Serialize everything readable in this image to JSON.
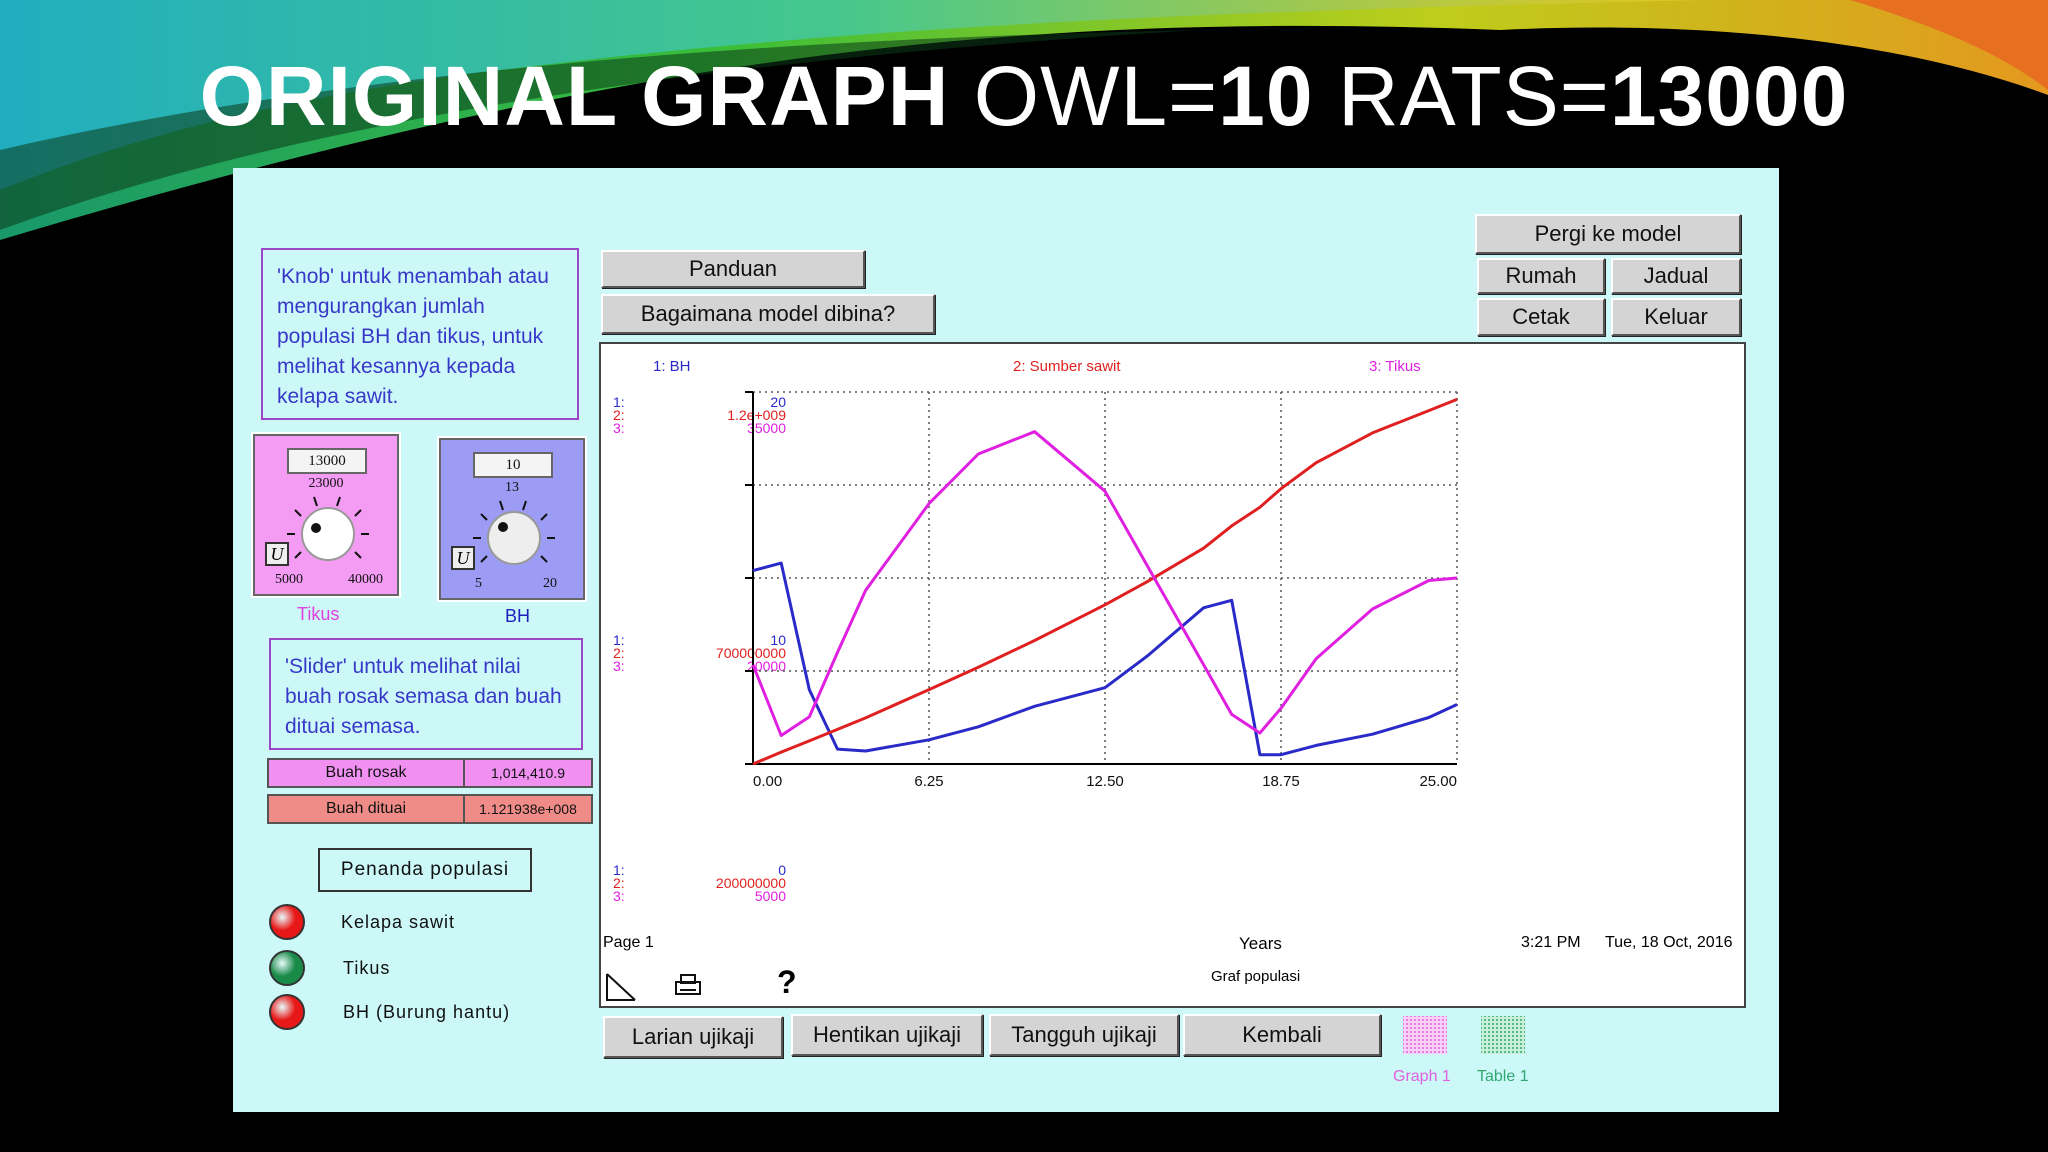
{
  "slide": {
    "title_bold1": "ORIGINAL GRAPH",
    "title_part2": "OWL=",
    "title_bold2": "10",
    "title_part3": "RATS=",
    "title_bold3": "13000"
  },
  "notes": {
    "knob_text": "'Knob' untuk menambah atau mengurangkan jumlah populasi BH dan tikus, untuk melihat kesannya kepada kelapa sawit.",
    "slider_text": "'Slider' untuk melihat nilai buah rosak semasa dan buah dituai semasa."
  },
  "buttons": {
    "panduan": "Panduan",
    "bagaimana": "Bagaimana model dibina?",
    "pergi": "Pergi ke model",
    "rumah": "Rumah",
    "jadual": "Jadual",
    "cetak": "Cetak",
    "keluar": "Keluar",
    "larian": "Larian ujikaji",
    "hentikan": "Hentikan ujikaji",
    "tangguh": "Tangguh ujikaji",
    "kembali": "Kembali"
  },
  "knobs": {
    "tikus": {
      "value": "13000",
      "sub": "23000",
      "min": "5000",
      "max": "40000",
      "label": "Tikus",
      "bg": "#f49cf4",
      "label_color": "#e040e0"
    },
    "bh": {
      "value": "10",
      "sub": "13",
      "min": "5",
      "max": "20",
      "label": "BH",
      "bg": "#9c9cf4",
      "label_color": "#2020c0"
    },
    "lock_glyph": "U"
  },
  "sliders": [
    {
      "label": "Buah rosak",
      "value": "1,014,410.9",
      "bg": "#f090f0"
    },
    {
      "label": "Buah dituai",
      "value": "1.121938e+008",
      "bg": "#f08c88"
    }
  ],
  "legend": {
    "title": "Penanda populasi",
    "items": [
      {
        "label": "Kelapa sawit",
        "color": "#e81818"
      },
      {
        "label": "Tikus",
        "color": "#1a8a48"
      },
      {
        "label": "BH (Burung hantu)",
        "color": "#e81818"
      }
    ]
  },
  "graph": {
    "legend": [
      {
        "label": "1: BH",
        "color": "#2a2ac8"
      },
      {
        "label": "2: Sumber sawit",
        "color": "#e02020"
      },
      {
        "label": "3: Tikus",
        "color": "#e020e0"
      }
    ],
    "y_top": {
      "s1": "20",
      "s2": "1.2e+009",
      "s3": "35000"
    },
    "y_mid": {
      "s1": "10",
      "s2": "700000000",
      "s3": "20000"
    },
    "y_bot": {
      "s1": "0",
      "s2": "200000000",
      "s3": "5000"
    },
    "axis_prefix": {
      "s1": "1:",
      "s2": "2:",
      "s3": "3:"
    },
    "x_ticks": [
      "0.00",
      "6.25",
      "12.50",
      "18.75",
      "25.00"
    ],
    "x_label": "Years",
    "page": "Page 1",
    "time": "3:21 PM",
    "date": "Tue, 18 Oct, 2016",
    "caption": "Graf populasi",
    "help": "?"
  },
  "chart_data": {
    "type": "line",
    "x": [
      0,
      1,
      2,
      3,
      4,
      6.25,
      8,
      10,
      12.5,
      14,
      16,
      17,
      18,
      18.75,
      20,
      22,
      24,
      25
    ],
    "xlim": [
      0,
      25
    ],
    "series": [
      {
        "name": "1: BH",
        "color": "#2a2ac8",
        "ylim": [
          0,
          20
        ],
        "values": [
          10.4,
          10.8,
          4,
          0.8,
          0.7,
          1.3,
          2.0,
          3.1,
          4.1,
          5.8,
          8.4,
          8.8,
          0.5,
          0.5,
          1.0,
          1.6,
          2.5,
          3.2
        ]
      },
      {
        "name": "2: Sumber sawit",
        "color": "#e02020",
        "ylim": [
          200000000,
          1200000000
        ],
        "values": [
          200000000,
          232000000,
          262000000,
          293000000,
          324000000,
          400000000,
          460000000,
          532000000,
          628000000,
          690000000,
          780000000,
          840000000,
          890000000,
          940000000,
          1010000000,
          1090000000,
          1150000000,
          1180000000
        ]
      },
      {
        "name": "3: Tikus",
        "color": "#e020e0",
        "ylim": [
          5000,
          35000
        ],
        "values": [
          13000,
          7300,
          8800,
          14000,
          19000,
          26000,
          30000,
          31800,
          27000,
          21000,
          13000,
          9000,
          7500,
          9500,
          13500,
          17500,
          19800,
          20000
        ]
      }
    ]
  },
  "tabs": [
    {
      "label": "Graph 1",
      "color": "#e060e0"
    },
    {
      "label": "Table 1",
      "color": "#30a870"
    }
  ]
}
